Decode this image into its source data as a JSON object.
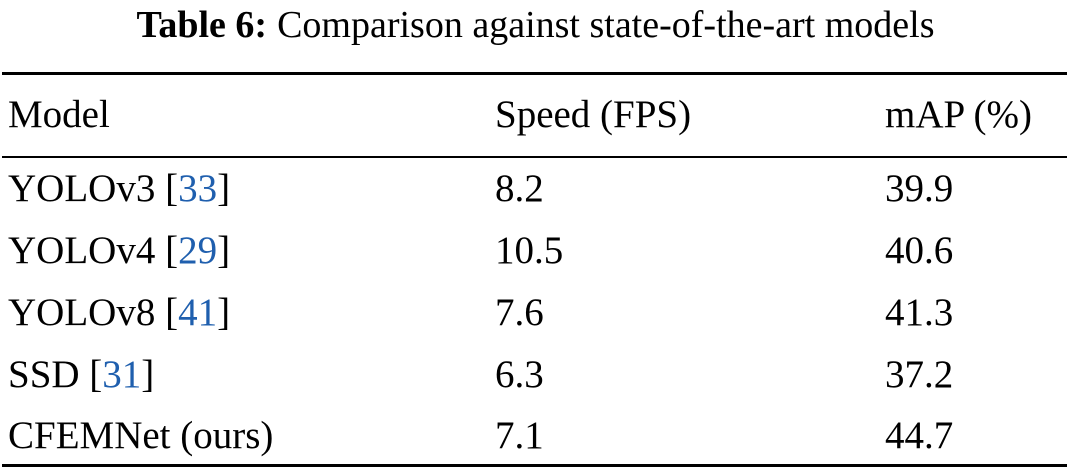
{
  "caption": {
    "label": "Table 6:",
    "text": "Comparison against state-of-the-art models"
  },
  "table": {
    "header": [
      "Model",
      "Speed (FPS)",
      "mAP (%)"
    ],
    "rows": [
      {
        "model": [
          {
            "text": "YOLOv3 ["
          },
          {
            "text": "33",
            "link": true
          },
          {
            "text": "]"
          }
        ],
        "speed": 8.2,
        "map": 39.9
      },
      {
        "model": [
          {
            "text": "YOLOv4 ["
          },
          {
            "text": "29",
            "link": true
          },
          {
            "text": "]"
          }
        ],
        "speed": 10.5,
        "map": 40.6
      },
      {
        "model": [
          {
            "text": "YOLOv8 ["
          },
          {
            "text": "41",
            "link": true
          },
          {
            "text": "]"
          }
        ],
        "speed": 7.6,
        "map": 41.3
      },
      {
        "model": [
          {
            "text": "SSD ["
          },
          {
            "text": "31",
            "link": true
          },
          {
            "text": "]"
          }
        ],
        "speed": 6.3,
        "map": 37.2
      },
      {
        "model": [
          {
            "text": "CFEMNet (ours)"
          }
        ],
        "speed": 7.1,
        "map": 44.7
      }
    ]
  }
}
